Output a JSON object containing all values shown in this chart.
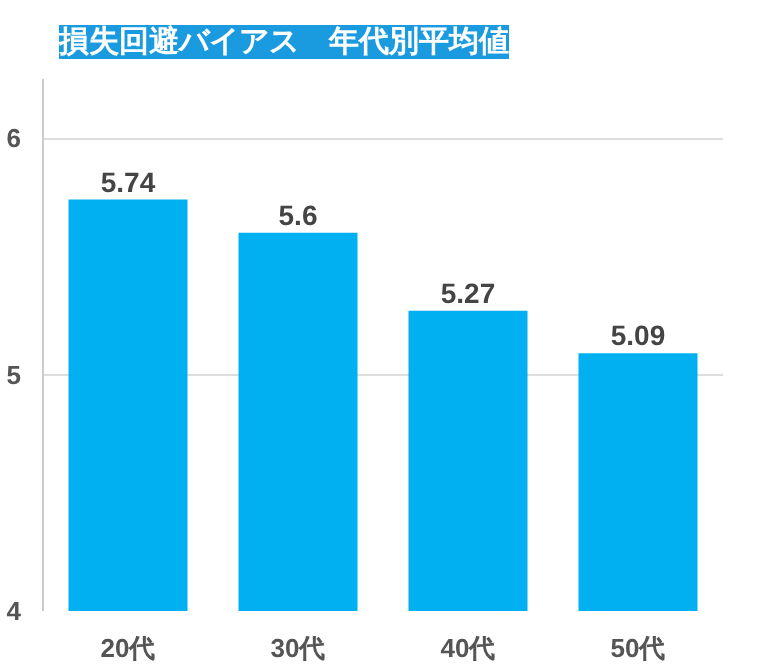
{
  "chart_data": {
    "type": "bar",
    "title": "損失回避バイアス　年代別平均値",
    "categories": [
      "20代",
      "30代",
      "40代",
      "50代"
    ],
    "values": [
      5.74,
      5.6,
      5.27,
      5.09
    ],
    "color": "#00b0f0",
    "ylim": [
      4,
      6.25
    ],
    "yticks": [
      4,
      5,
      6
    ],
    "grid": "y",
    "data_labels": true
  }
}
